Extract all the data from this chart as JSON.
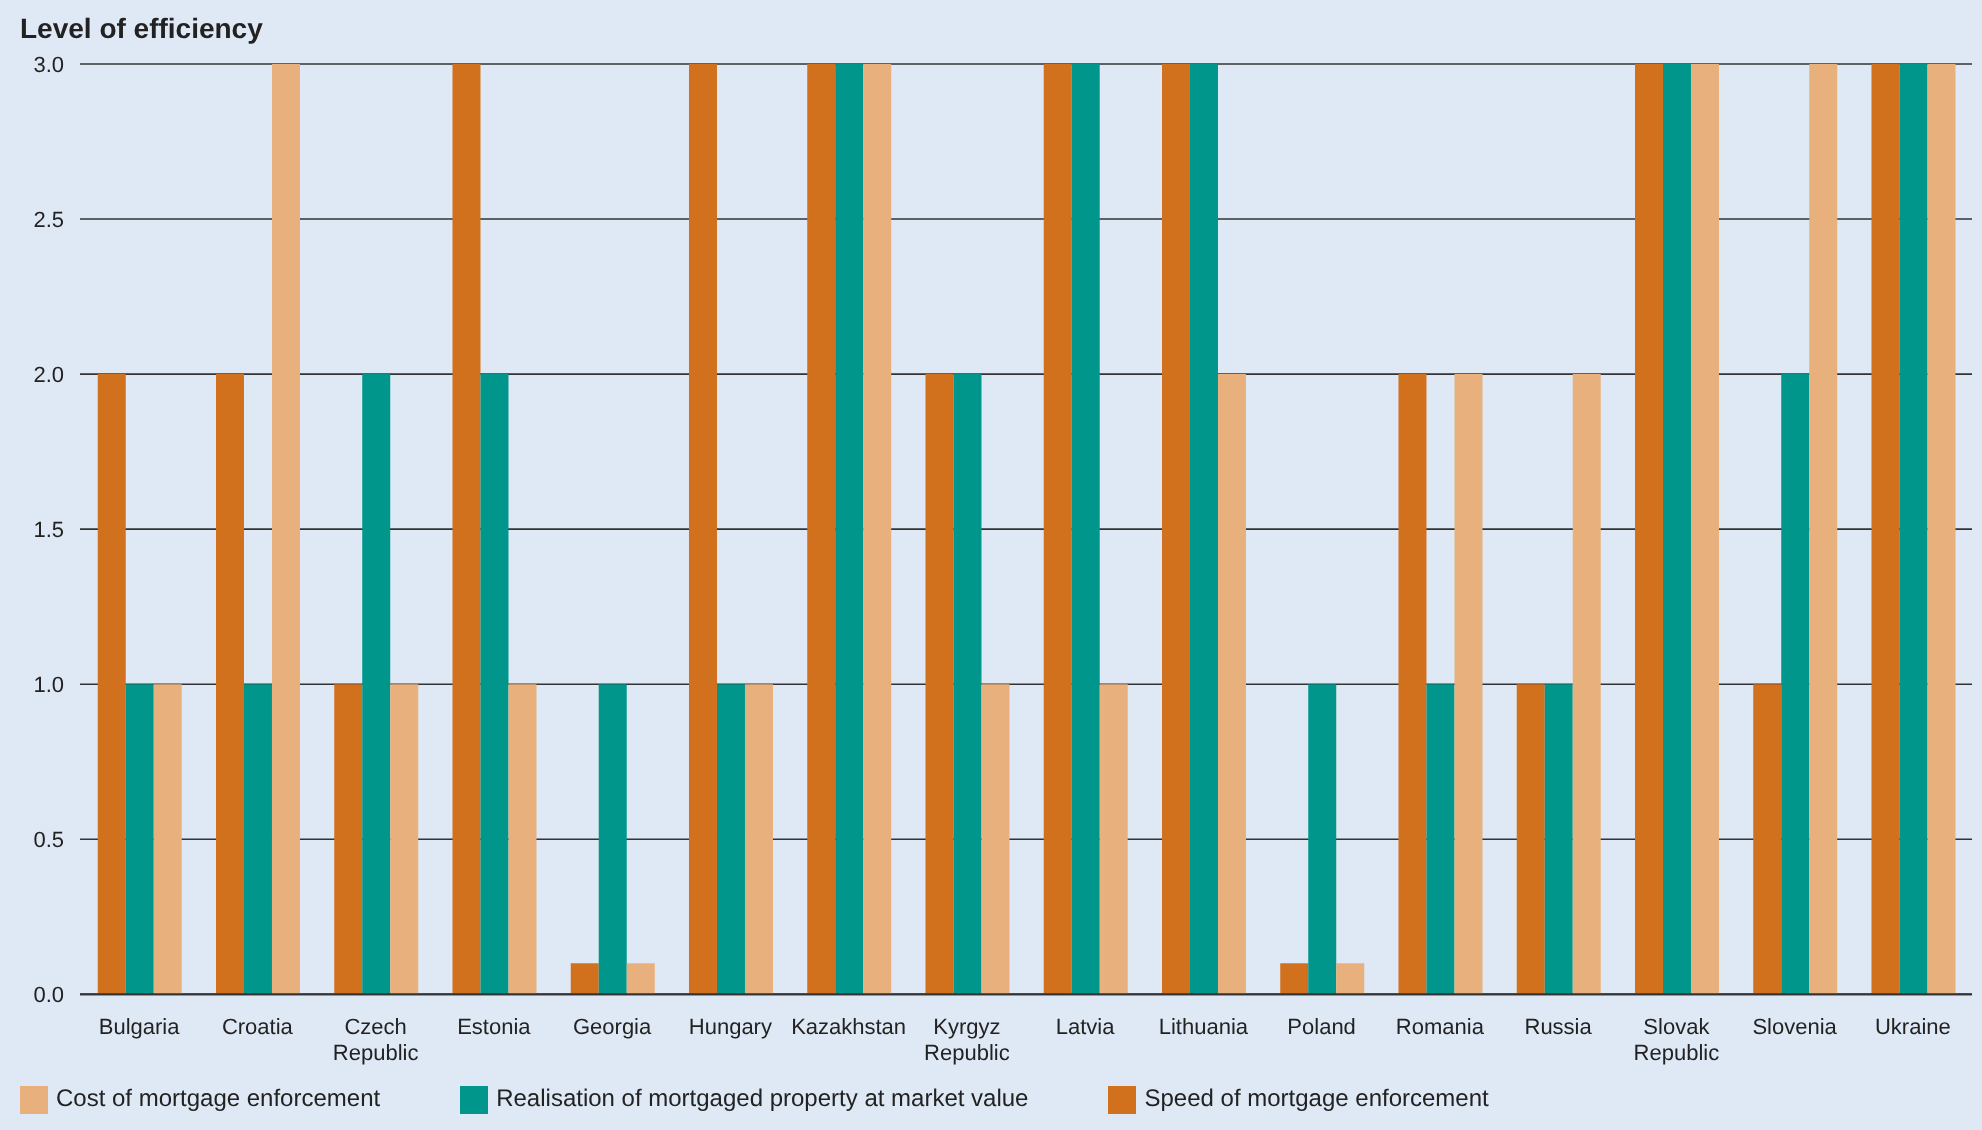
{
  "chart_data": {
    "type": "bar",
    "title": "Level of efficiency",
    "categories": [
      "Bulgaria",
      "Croatia",
      "Czech Republic",
      "Estonia",
      "Georgia",
      "Hungary",
      "Kazakhstan",
      "Kyrgyz Republic",
      "Latvia",
      "Lithuania",
      "Poland",
      "Romania",
      "Russia",
      "Slovak Republic",
      "Slovenia",
      "Ukraine"
    ],
    "series": [
      {
        "name": "Speed of mortgage enforcement",
        "color": "#d2711d",
        "values": [
          2,
          2,
          1,
          3,
          0.1,
          3,
          3,
          2,
          3,
          3,
          0.1,
          2,
          1,
          3,
          1,
          3
        ]
      },
      {
        "name": "Realisation of mortgaged property at market value",
        "color": "#00968c",
        "values": [
          1,
          1,
          2,
          2,
          1,
          1,
          3,
          2,
          3,
          3,
          1,
          1,
          1,
          3,
          2,
          3
        ]
      },
      {
        "name": "Cost of mortgage enforcement",
        "color": "#e8b07c",
        "values": [
          1,
          3,
          1,
          1,
          0.1,
          1,
          3,
          1,
          1,
          2,
          0.1,
          2,
          2,
          3,
          3,
          3
        ]
      }
    ],
    "ylim": [
      0,
      3
    ],
    "yticks": [
      {
        "value": 0,
        "label": "0.0"
      },
      {
        "value": 0.5,
        "label": "0.5"
      },
      {
        "value": 1,
        "label": "1.0"
      },
      {
        "value": 1.5,
        "label": "1.5"
      },
      {
        "value": 2,
        "label": "2.0"
      },
      {
        "value": 2.5,
        "label": "2.5"
      },
      {
        "value": 3,
        "label": "3.0"
      }
    ],
    "grid": "y",
    "legend": "bottom"
  }
}
